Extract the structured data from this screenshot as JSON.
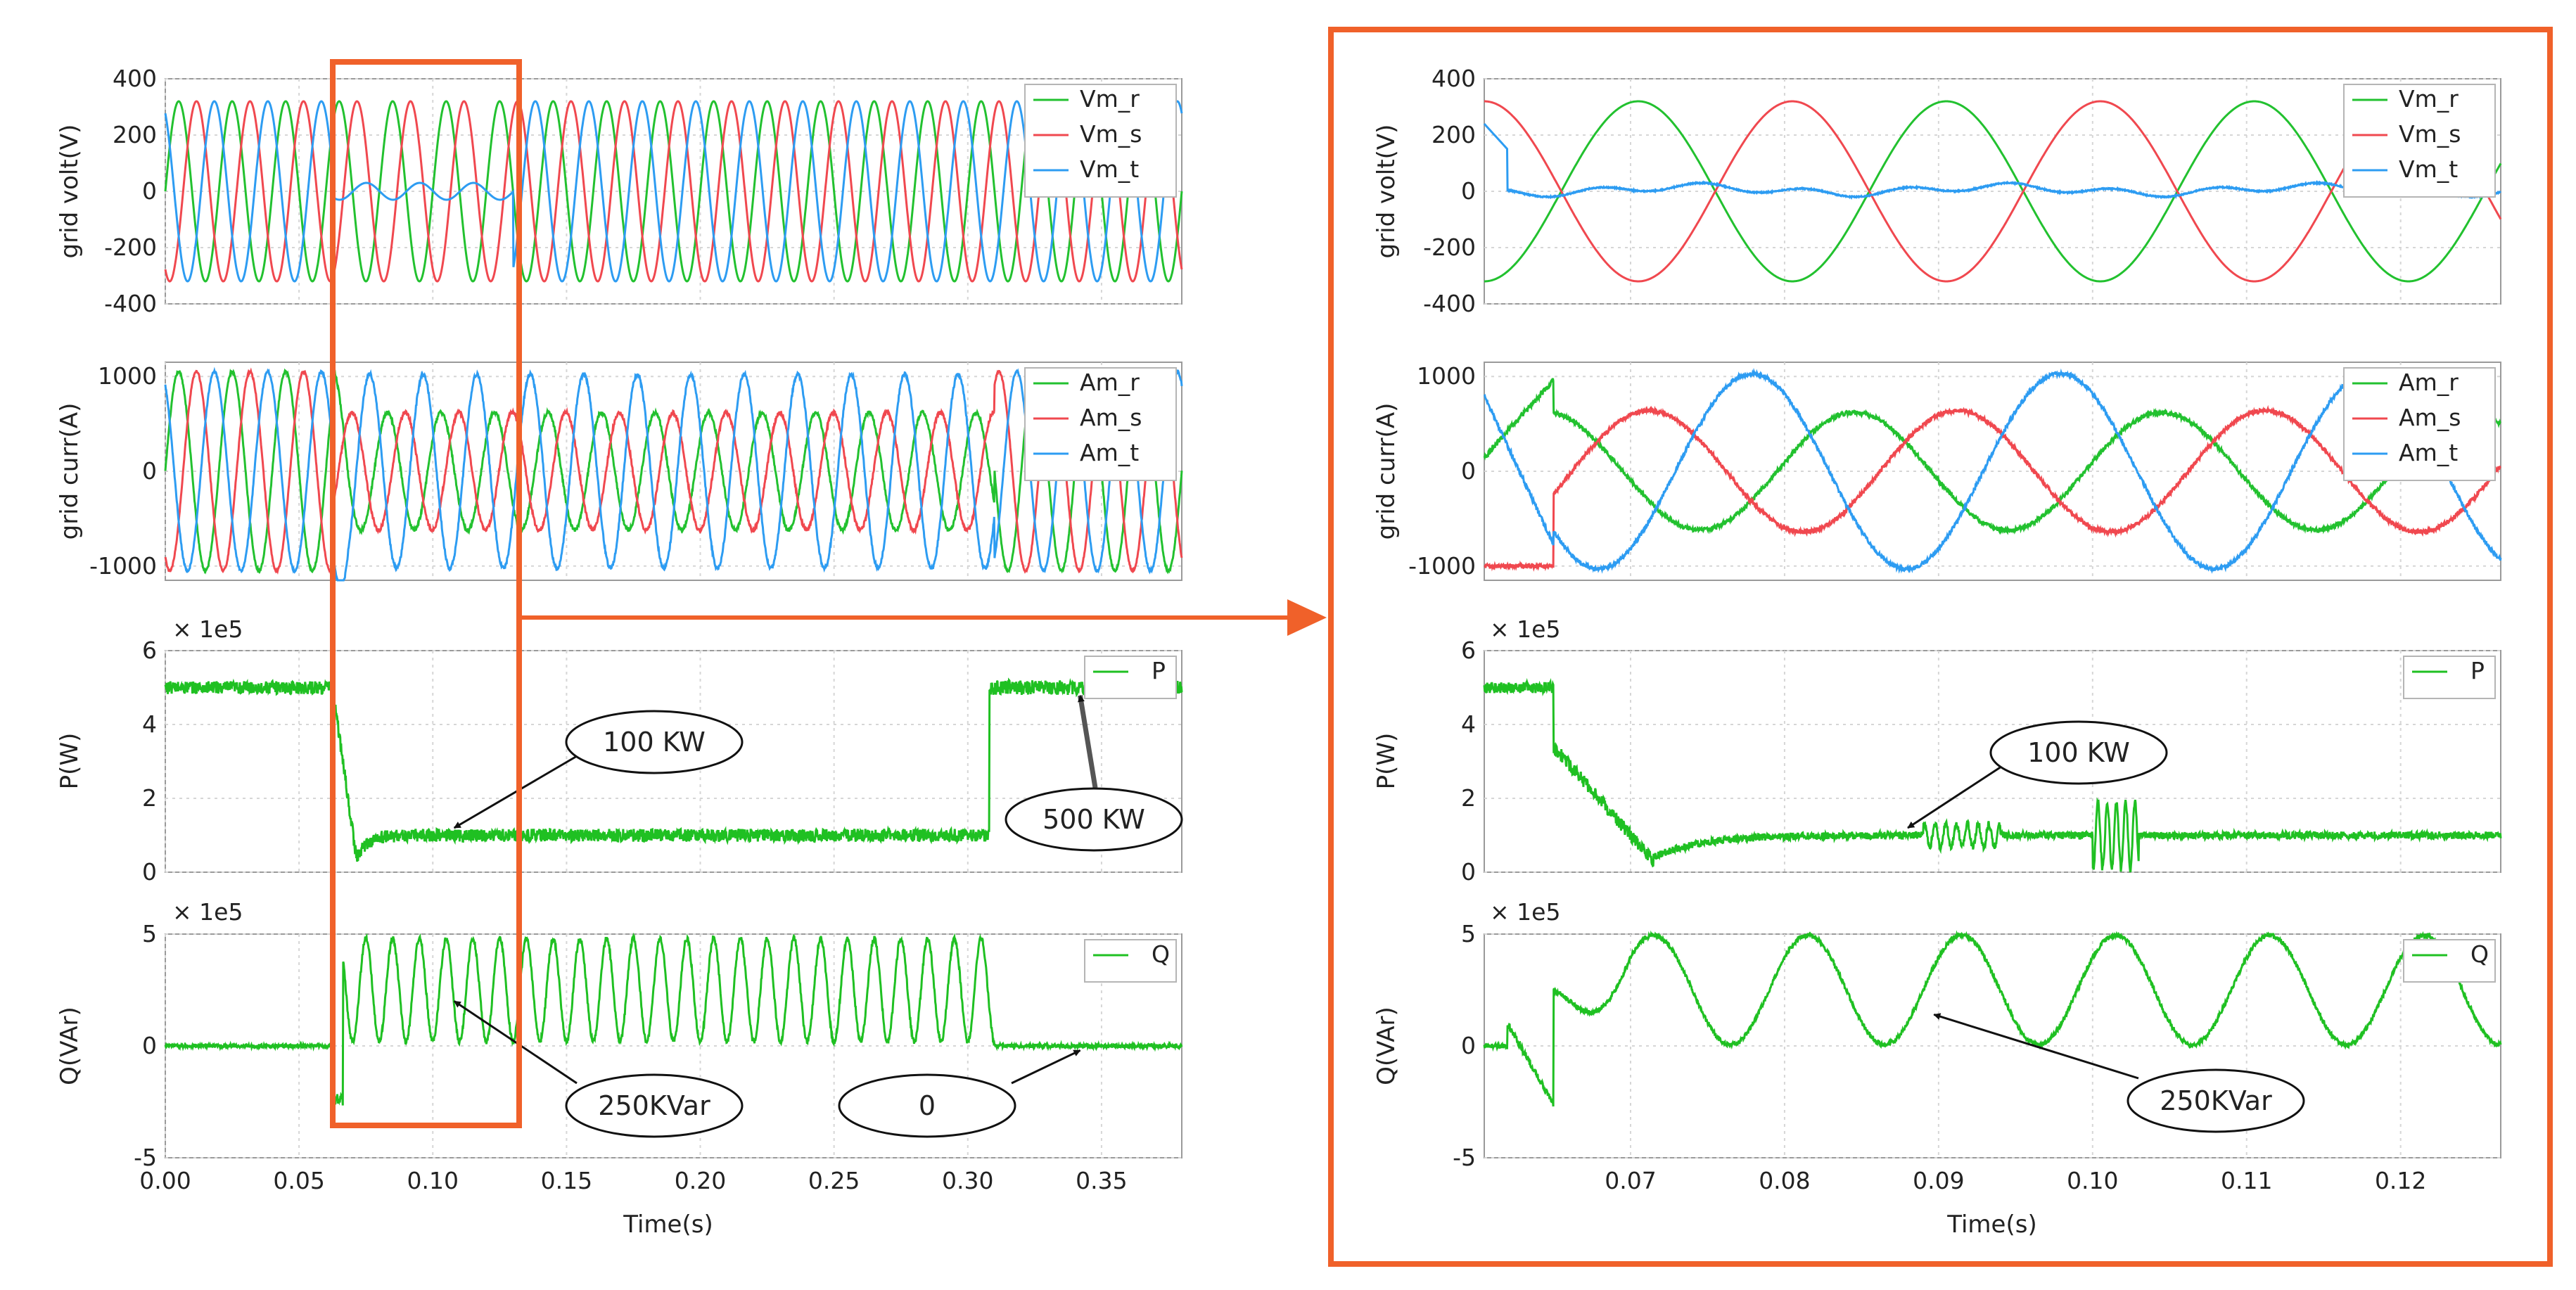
{
  "figure": {
    "type": "waveform-oscilloscope",
    "accent_color": "#f0612a",
    "grid_color": "#d6d6d6",
    "trace_colors": {
      "r": "#22c12f",
      "s": "#f0484f",
      "t": "#2d9cf2",
      "P": "#1fc022",
      "Q": "#1fc022"
    }
  },
  "chart_data": [
    {
      "id": "left",
      "type": "line",
      "xlabel": "Time(s)",
      "xlim": [
        0.0,
        0.38
      ],
      "xticks": [
        "0.00",
        "0.05",
        "0.10",
        "0.15",
        "0.20",
        "0.25",
        "0.30",
        "0.35"
      ],
      "xtick_values": [
        0,
        0.05,
        0.1,
        0.15,
        0.2,
        0.25,
        0.3,
        0.35
      ],
      "panels": [
        {
          "id": "volt",
          "ylabel": "grid volt(V)",
          "ylim": [
            -400,
            400
          ],
          "yticks": [
            "400",
            "200",
            "0",
            "-200",
            "-400"
          ],
          "ytick_values": [
            400,
            200,
            0,
            -200,
            -400
          ],
          "scale_label": "",
          "series": [
            {
              "name": "Vm_r",
              "color": "r",
              "phase": 0
            },
            {
              "name": "Vm_s",
              "color": "s",
              "phase": -120
            },
            {
              "name": "Vm_t",
              "color": "t",
              "phase": 120
            }
          ],
          "model": {
            "amplitude": 320,
            "fault_on": 0.0625,
            "fault_off": 0.13,
            "collapsed_amplitude": 30
          }
        },
        {
          "id": "curr",
          "ylabel": "grid curr(A)",
          "ylim": [
            -1150,
            1150
          ],
          "yticks": [
            "1000",
            "0",
            "-1000"
          ],
          "ytick_values": [
            1000,
            0,
            -1000
          ],
          "scale_label": "",
          "series": [
            {
              "name": "Am_r",
              "color": "r",
              "phase": 0
            },
            {
              "name": "Am_s",
              "color": "s",
              "phase": -120
            },
            {
              "name": "Am_t",
              "color": "t",
              "phase": 120
            }
          ],
          "model": {
            "amplitude": 1050,
            "fault_on": 0.0625,
            "fault_off": 0.31,
            "fault_amplitude": 620
          }
        },
        {
          "id": "P",
          "ylabel": "P(W)",
          "ylim": [
            0,
            6
          ],
          "yticks": [
            "6",
            "4",
            "2",
            "0"
          ],
          "ytick_values": [
            6,
            4,
            2,
            0
          ],
          "scale_label": "× 1e5",
          "series": [
            {
              "name": "P",
              "color": "P"
            }
          ],
          "model": {
            "pre": 5.0,
            "fault_on": 0.0625,
            "fault_value": 1.0,
            "recover": 0.308,
            "post": 5.0
          }
        },
        {
          "id": "Q",
          "ylabel": "Q(VAr)",
          "ylim": [
            -5,
            5
          ],
          "yticks": [
            "5",
            "0",
            "-5"
          ],
          "ytick_values": [
            5,
            0,
            -5
          ],
          "scale_label": "× 1e5",
          "series": [
            {
              "name": "Q",
              "color": "Q"
            }
          ],
          "model": {
            "pre": 0.0,
            "fault_on": 0.0625,
            "mean": 2.5,
            "amplitude": 2.3,
            "recover": 0.31,
            "post": 0.0
          }
        }
      ],
      "annotations": [
        {
          "panel": "P",
          "text": "100 KW",
          "target": [
            0.108,
            1.2
          ]
        },
        {
          "panel": "P",
          "text": "500 KW",
          "target": [
            0.342,
            4.9
          ]
        },
        {
          "panel": "Q",
          "text": "250KVar",
          "target": [
            0.108,
            2.0
          ]
        },
        {
          "panel": "Q",
          "text": "0",
          "target": [
            0.342,
            -0.2
          ]
        }
      ]
    },
    {
      "id": "right",
      "type": "line",
      "xlabel": "Time(s)",
      "xlim": [
        0.0605,
        0.1265
      ],
      "xticks": [
        "0.07",
        "0.08",
        "0.09",
        "0.10",
        "0.11",
        "0.12"
      ],
      "xtick_values": [
        0.07,
        0.08,
        0.09,
        0.1,
        0.11,
        0.12
      ],
      "panels": [
        {
          "id": "volt",
          "ylabel": "grid volt(V)",
          "ylim": [
            -400,
            400
          ],
          "yticks": [
            "400",
            "200",
            "0",
            "-200",
            "-400"
          ],
          "ytick_values": [
            400,
            200,
            0,
            -200,
            -400
          ],
          "scale_label": "",
          "series": [
            {
              "name": "Vm_r",
              "color": "r"
            },
            {
              "name": "Vm_s",
              "color": "s"
            },
            {
              "name": "Vm_t",
              "color": "t"
            }
          ]
        },
        {
          "id": "curr",
          "ylabel": "grid curr(A)",
          "ylim": [
            -1150,
            1150
          ],
          "yticks": [
            "1000",
            "0",
            "-1000"
          ],
          "ytick_values": [
            1000,
            0,
            -1000
          ],
          "scale_label": "",
          "series": [
            {
              "name": "Am_r",
              "color": "r"
            },
            {
              "name": "Am_s",
              "color": "s"
            },
            {
              "name": "Am_t",
              "color": "t"
            }
          ]
        },
        {
          "id": "P",
          "ylabel": "P(W)",
          "ylim": [
            0,
            6
          ],
          "yticks": [
            "6",
            "4",
            "2",
            "0"
          ],
          "ytick_values": [
            6,
            4,
            2,
            0
          ],
          "scale_label": "× 1e5",
          "series": [
            {
              "name": "P",
              "color": "P"
            }
          ]
        },
        {
          "id": "Q",
          "ylabel": "Q(VAr)",
          "ylim": [
            -5,
            5
          ],
          "yticks": [
            "5",
            "0",
            "-5"
          ],
          "ytick_values": [
            5,
            0,
            -5
          ],
          "scale_label": "× 1e5",
          "series": [
            {
              "name": "Q",
              "color": "Q"
            }
          ]
        }
      ],
      "annotations": [
        {
          "panel": "P",
          "text": "100 KW",
          "target": [
            0.088,
            1.2
          ]
        },
        {
          "panel": "Q",
          "text": "250KVar",
          "target": [
            0.0897,
            1.4
          ]
        }
      ]
    }
  ],
  "zoom": {
    "from_chart": "left",
    "to_chart": "right",
    "x_range": [
      0.0605,
      0.1265
    ]
  }
}
